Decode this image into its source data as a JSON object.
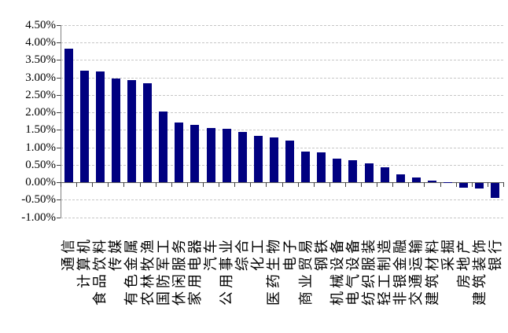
{
  "chart_data": {
    "type": "bar",
    "title": "",
    "xlabel": "",
    "ylabel": "",
    "legend": "none",
    "grid": "horizontal-dashed",
    "value_unit": "%",
    "ylim": [
      -1.0,
      4.5
    ],
    "ytick_step": 0.5,
    "ytick_labels": [
      "4.50%",
      "4.00%",
      "3.50%",
      "3.00%",
      "2.50%",
      "2.00%",
      "1.50%",
      "1.00%",
      "0.50%",
      "0.00%",
      "-0.50%",
      "-1.00%"
    ],
    "categories": [
      "通信",
      "计算机",
      "食品饮料",
      "传媒",
      "有色金属",
      "农林牧渔",
      "国防军工",
      "休闲服务",
      "家用电器",
      "汽车",
      "公用事业",
      "综合",
      "化工",
      "医药生物",
      "电子",
      "商业贸易",
      "钢铁",
      "机械设备",
      "电气设备",
      "纺织服装",
      "轻工制造",
      "非银金融",
      "交通运输",
      "建筑材料",
      "采掘",
      "房地产",
      "建筑装饰",
      "银行"
    ],
    "values": [
      3.83,
      3.18,
      3.17,
      2.97,
      2.93,
      2.84,
      2.03,
      1.7,
      1.65,
      1.55,
      1.53,
      1.44,
      1.33,
      1.27,
      1.18,
      0.87,
      0.85,
      0.68,
      0.64,
      0.54,
      0.42,
      0.23,
      0.14,
      0.05,
      0.01,
      -0.14,
      -0.16,
      -0.42
    ],
    "colors": {
      "bar": "#000080",
      "gridline": "#c6c6c6",
      "zero_line": "#595959",
      "y_axis_line": "#808080",
      "tick": "#404040",
      "background": "#ffffff",
      "text": "#000000"
    }
  }
}
